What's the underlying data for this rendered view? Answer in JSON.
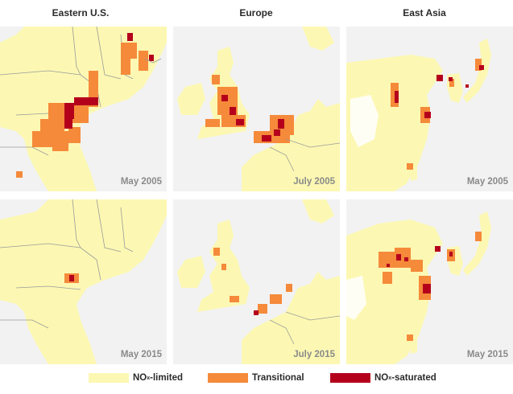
{
  "columns": [
    "Eastern U.S.",
    "Europe",
    "East Asia"
  ],
  "dates": {
    "us_2005": "May 2005",
    "eu_2005": "July 2005",
    "asia_2005": "May 2005",
    "us_2015": "May 2015",
    "eu_2015": "July 2015",
    "asia_2015": "May 2015"
  },
  "legend": [
    {
      "label": "NO",
      "sub": "x",
      "suffix": "-limited",
      "color": "#fcf8b3"
    },
    {
      "label": "Transitional",
      "sub": "",
      "suffix": "",
      "color": "#f58a3a"
    },
    {
      "label": "NO",
      "sub": "x",
      "suffix": "-saturated",
      "color": "#b5001c"
    }
  ],
  "colors": {
    "land_ocean": "#f2f2f2",
    "limited": "#fcf8b3",
    "transitional": "#f58a3a",
    "saturated": "#b5001c",
    "border": "#9a9a9a"
  }
}
